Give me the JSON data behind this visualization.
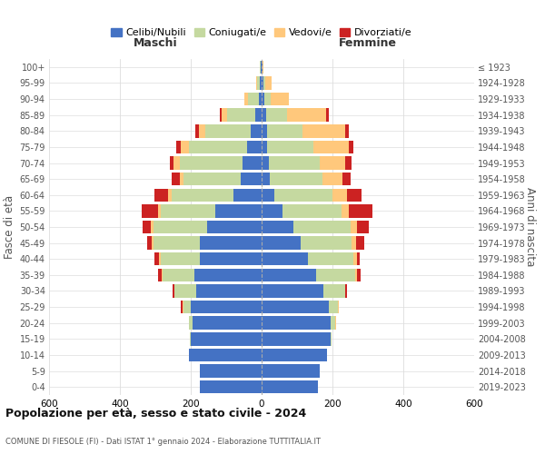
{
  "age_groups": [
    "0-4",
    "5-9",
    "10-14",
    "15-19",
    "20-24",
    "25-29",
    "30-34",
    "35-39",
    "40-44",
    "45-49",
    "50-54",
    "55-59",
    "60-64",
    "65-69",
    "70-74",
    "75-79",
    "80-84",
    "85-89",
    "90-94",
    "95-99",
    "100+"
  ],
  "birth_years": [
    "2019-2023",
    "2014-2018",
    "2009-2013",
    "2004-2008",
    "1999-2003",
    "1994-1998",
    "1989-1993",
    "1984-1988",
    "1979-1983",
    "1974-1978",
    "1969-1973",
    "1964-1968",
    "1959-1963",
    "1954-1958",
    "1949-1953",
    "1944-1948",
    "1939-1943",
    "1934-1938",
    "1929-1933",
    "1924-1928",
    "≤ 1923"
  ],
  "maschi": {
    "celibi": [
      175,
      175,
      205,
      200,
      195,
      200,
      185,
      190,
      175,
      175,
      155,
      130,
      80,
      60,
      55,
      40,
      30,
      18,
      8,
      4,
      2
    ],
    "coniugati": [
      0,
      0,
      0,
      2,
      10,
      20,
      60,
      90,
      110,
      130,
      150,
      155,
      175,
      160,
      175,
      165,
      130,
      80,
      30,
      8,
      2
    ],
    "vedovi": [
      0,
      0,
      0,
      0,
      0,
      2,
      2,
      3,
      5,
      5,
      8,
      8,
      8,
      12,
      18,
      22,
      18,
      15,
      12,
      4,
      0
    ],
    "divorziati": [
      0,
      0,
      0,
      0,
      0,
      5,
      5,
      10,
      12,
      12,
      22,
      45,
      40,
      22,
      12,
      15,
      8,
      4,
      0,
      0,
      0
    ]
  },
  "femmine": {
    "nubili": [
      160,
      165,
      185,
      195,
      195,
      190,
      175,
      155,
      130,
      110,
      90,
      60,
      35,
      22,
      20,
      15,
      15,
      12,
      8,
      5,
      2
    ],
    "coniugate": [
      0,
      0,
      0,
      2,
      12,
      25,
      60,
      110,
      130,
      145,
      160,
      165,
      165,
      150,
      145,
      130,
      100,
      60,
      18,
      5,
      0
    ],
    "vedove": [
      0,
      0,
      0,
      0,
      2,
      2,
      2,
      5,
      8,
      12,
      18,
      22,
      40,
      55,
      70,
      100,
      120,
      110,
      50,
      18,
      2
    ],
    "divorziate": [
      0,
      0,
      0,
      0,
      2,
      2,
      5,
      10,
      10,
      22,
      35,
      65,
      42,
      25,
      18,
      15,
      10,
      8,
      2,
      0,
      0
    ]
  },
  "colors": {
    "celibi": "#4472C4",
    "coniugati": "#c5d9a0",
    "vedovi": "#ffc87c",
    "divorziati": "#cc2222"
  },
  "xlim": 600,
  "title": "Popolazione per età, sesso e stato civile - 2024",
  "subtitle": "COMUNE DI FIESOLE (FI) - Dati ISTAT 1° gennaio 2024 - Elaborazione TUTTITALIA.IT",
  "ylabel": "Fasce di età",
  "ylabel_right": "Anni di nascita",
  "legend_labels": [
    "Celibi/Nubili",
    "Coniugati/e",
    "Vedovi/e",
    "Divorziati/e"
  ]
}
